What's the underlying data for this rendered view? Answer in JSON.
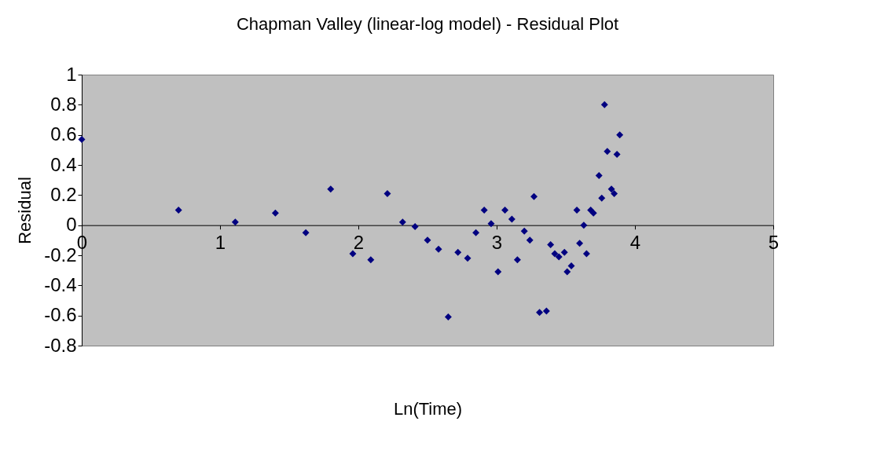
{
  "chart_data": {
    "type": "scatter",
    "title": "Chapman Valley (linear-log model) - Residual Plot",
    "xlabel": "Ln(Time)",
    "ylabel": "Residual",
    "xlim": [
      0,
      5
    ],
    "xticks": [
      0,
      1,
      2,
      3,
      4,
      5
    ],
    "ylim": [
      -0.8,
      1
    ],
    "yticks": [
      -0.8,
      -0.6,
      -0.4,
      -0.2,
      0,
      0.2,
      0.4,
      0.6,
      0.8,
      1
    ],
    "grid": false,
    "marker": "diamond",
    "series": [
      {
        "color": "#000080",
        "x": [
          0,
          0.7,
          1.11,
          1.4,
          1.62,
          1.8,
          1.96,
          2.09,
          2.21,
          2.32,
          2.41,
          2.5,
          2.58,
          2.65,
          2.72,
          2.79,
          2.85,
          2.91,
          2.96,
          3.01,
          3.06,
          3.11,
          3.15,
          3.2,
          3.24,
          3.27,
          3.31,
          3.36,
          3.39,
          3.42,
          3.45,
          3.49,
          3.51,
          3.54,
          3.58,
          3.6,
          3.63,
          3.65,
          3.68,
          3.7,
          3.74,
          3.76,
          3.78,
          3.8,
          3.83,
          3.85,
          3.87,
          3.89
        ],
        "values": [
          0.57,
          0.1,
          0.02,
          0.08,
          -0.05,
          0.24,
          -0.19,
          -0.23,
          0.21,
          0.02,
          -0.01,
          -0.1,
          -0.16,
          -0.61,
          -0.18,
          -0.22,
          -0.05,
          0.1,
          0.01,
          -0.31,
          0.1,
          0.04,
          -0.23,
          -0.04,
          -0.1,
          0.19,
          -0.58,
          -0.57,
          -0.13,
          -0.19,
          -0.21,
          -0.18,
          -0.31,
          -0.27,
          0.1,
          -0.12,
          0.0,
          -0.19,
          0.1,
          0.08,
          0.33,
          0.18,
          0.8,
          0.49,
          0.24,
          0.21,
          0.47,
          0.6
        ]
      }
    ]
  }
}
